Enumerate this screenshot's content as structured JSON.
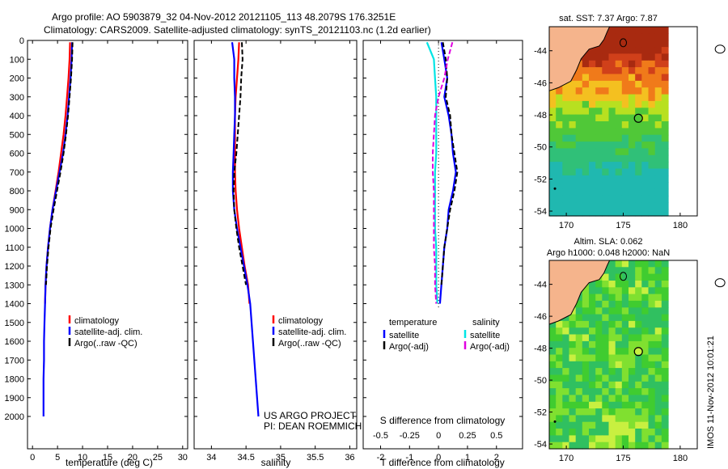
{
  "header": {
    "title_line1": "Argo profile: AO 5903879_32 04-Nov-2012 20121105_113 48.2079S 176.3251E",
    "title_line2": "Climatology: CARS2009. Satellite-adjusted climatology: synTS_20121103.nc (1.2d earlier)"
  },
  "stamp": "IMOS 11-Nov-2012 10:01:21",
  "colors": {
    "climatology": "#ff0000",
    "satellite": "#0000ff",
    "argo": "#000000",
    "sat_diff_s": "#00e5e5",
    "argo_diff_s": "#e000e0",
    "land": "#f5b48c"
  },
  "chart_data": [
    {
      "type": "line",
      "name": "temperature-profile",
      "xlabel": "temperature (deg C)",
      "xlim": [
        -1,
        31
      ],
      "ylim": [
        0,
        2050
      ],
      "yreverse": true,
      "xticks": [
        0,
        5,
        10,
        15,
        20,
        25,
        30
      ],
      "yticks": [
        0,
        100,
        200,
        300,
        400,
        500,
        600,
        700,
        800,
        900,
        1000,
        1100,
        1200,
        1300,
        1400,
        1500,
        1600,
        1700,
        1800,
        1900,
        2000
      ],
      "legend": [
        "climatology",
        "satellite-adj. clim.",
        "Argo(..raw -QC)"
      ],
      "series": [
        {
          "name": "climatology",
          "color": "#ff0000",
          "x": [
            7.5,
            7.4,
            7.2,
            6.9,
            6.6,
            6.2,
            5.7,
            5.2,
            4.6,
            4.0,
            3.5,
            3.1,
            2.8,
            2.6,
            2.5
          ],
          "y": [
            10,
            100,
            200,
            300,
            400,
            500,
            600,
            700,
            800,
            900,
            1000,
            1100,
            1200,
            1300,
            1400
          ]
        },
        {
          "name": "satellite-adj. clim.",
          "color": "#0000ff",
          "x": [
            7.9,
            7.8,
            7.6,
            7.3,
            7.0,
            6.6,
            6.1,
            5.4,
            4.7,
            4.0,
            3.5,
            3.1,
            2.8,
            2.6,
            2.5,
            2.4,
            2.3,
            2.3,
            2.2,
            2.2,
            2.2
          ],
          "y": [
            10,
            100,
            200,
            300,
            400,
            500,
            600,
            700,
            800,
            900,
            1000,
            1100,
            1200,
            1300,
            1400,
            1500,
            1600,
            1700,
            1800,
            1900,
            2000
          ]
        },
        {
          "name": "Argo(..raw -QC)",
          "color": "#000000",
          "dashed": true,
          "x": [
            8.0,
            7.9,
            7.7,
            7.4,
            7.1,
            6.7,
            6.2,
            5.6,
            4.9,
            4.2,
            3.6,
            3.2,
            2.9,
            2.7
          ],
          "y": [
            10,
            100,
            200,
            300,
            400,
            500,
            600,
            700,
            800,
            900,
            1000,
            1100,
            1200,
            1300
          ]
        }
      ]
    },
    {
      "type": "line",
      "name": "salinity-profile",
      "xlabel": "salinity",
      "xlim": [
        33.75,
        36.1
      ],
      "ylim": [
        0,
        2050
      ],
      "yreverse": true,
      "xticks": [
        34,
        34.5,
        35,
        35.5,
        36
      ],
      "legend": [
        "climatology",
        "satellite-adj. clim.",
        "Argo(..raw -QC)"
      ],
      "annotation": [
        "US ARGO PROJECT",
        "PI: DEAN ROEMMICH"
      ],
      "series": [
        {
          "name": "climatology",
          "color": "#ff0000",
          "x": [
            34.4,
            34.39,
            34.37,
            34.35,
            34.34,
            34.34,
            34.34,
            34.34,
            34.35,
            34.37,
            34.4,
            34.44,
            34.48,
            34.53,
            34.55
          ],
          "y": [
            10,
            100,
            200,
            300,
            400,
            500,
            600,
            700,
            800,
            900,
            1000,
            1100,
            1200,
            1300,
            1400
          ]
        },
        {
          "name": "satellite-adj. clim.",
          "color": "#0000ff",
          "x": [
            34.3,
            34.33,
            34.33,
            34.34,
            34.34,
            34.33,
            34.32,
            34.31,
            34.31,
            34.33,
            34.37,
            34.42,
            34.47,
            34.52,
            34.56,
            34.58,
            34.6,
            34.62,
            34.64,
            34.66,
            34.68
          ],
          "y": [
            10,
            100,
            200,
            300,
            400,
            500,
            600,
            700,
            800,
            900,
            1000,
            1100,
            1200,
            1300,
            1400,
            1500,
            1600,
            1700,
            1800,
            1900,
            2000
          ]
        },
        {
          "name": "Argo(..raw -QC)",
          "color": "#000000",
          "dashed": true,
          "x": [
            34.44,
            34.45,
            34.43,
            34.42,
            34.4,
            34.38,
            34.36,
            34.33,
            34.32,
            34.33,
            34.36,
            34.4,
            34.45,
            34.5
          ],
          "y": [
            10,
            100,
            200,
            300,
            400,
            500,
            600,
            700,
            800,
            900,
            1000,
            1100,
            1200,
            1300
          ]
        }
      ]
    },
    {
      "type": "line",
      "name": "difference-from-climatology",
      "xlabel": "T difference from climatology",
      "xlabel_top": "S difference from climatology",
      "xlim": [
        -2.6,
        2.9
      ],
      "ylim": [
        0,
        2050
      ],
      "yreverse": true,
      "xticks": [
        -2,
        -1,
        0,
        1,
        2
      ],
      "xticks_s": [
        -0.5,
        -0.25,
        0,
        0.25,
        0.5
      ],
      "legend_groups": [
        {
          "title": "temperature",
          "items": [
            "satellite",
            "Argo(-adj)"
          ]
        },
        {
          "title": "salinity",
          "items": [
            "satellite",
            "Argo(-adj)"
          ]
        }
      ],
      "series": [
        {
          "name": "temperature satellite",
          "color": "#0000ff",
          "x": [
            0.1,
            0.2,
            0.3,
            0.2,
            0.35,
            0.45,
            0.5,
            0.6,
            0.5,
            0.35,
            0.3,
            0.2,
            0.15,
            0.1,
            0.05
          ],
          "y": [
            10,
            100,
            200,
            300,
            400,
            500,
            600,
            700,
            800,
            900,
            1000,
            1100,
            1200,
            1300,
            1400
          ]
        },
        {
          "name": "temperature Argo(-adj)",
          "color": "#000000",
          "dashed": true,
          "x": [
            0.15,
            0.25,
            0.3,
            0.25,
            0.4,
            0.45,
            0.55,
            0.65,
            0.55,
            0.4,
            0.3,
            0.2,
            0.15,
            0.1
          ],
          "y": [
            10,
            100,
            200,
            300,
            400,
            500,
            600,
            700,
            800,
            900,
            1000,
            1100,
            1200,
            1300
          ]
        },
        {
          "name": "salinity satellite",
          "color": "#00e5e5",
          "x": [
            -0.1,
            -0.04,
            -0.03,
            -0.02,
            -0.02,
            -0.02,
            -0.02,
            -0.03,
            -0.03,
            -0.03,
            -0.03,
            -0.02,
            -0.02,
            -0.02,
            -0.01
          ],
          "y": [
            10,
            100,
            200,
            300,
            400,
            500,
            600,
            700,
            800,
            900,
            1000,
            1100,
            1200,
            1300,
            1400
          ]
        },
        {
          "name": "salinity Argo(-adj)",
          "color": "#e000e0",
          "dashed": true,
          "x": [
            0.12,
            0.08,
            0.05,
            0.0,
            -0.03,
            -0.04,
            -0.05,
            -0.05,
            -0.04,
            -0.04,
            -0.04,
            -0.04,
            -0.03,
            -0.03,
            -0.02
          ],
          "y": [
            10,
            100,
            200,
            300,
            400,
            500,
            600,
            700,
            800,
            900,
            1000,
            1100,
            1200,
            1300,
            1400
          ]
        }
      ]
    },
    {
      "type": "heatmap",
      "name": "sst-map",
      "title": "sat. SST: 7.37  Argo: 7.87",
      "xlim": [
        168.5,
        181.5
      ],
      "ylim": [
        -54.3,
        -42.5
      ],
      "xticks": [
        170,
        175,
        180
      ],
      "yticks": [
        -44,
        -46,
        -48,
        -50,
        -52,
        -54
      ]
    },
    {
      "type": "heatmap",
      "name": "sla-map",
      "title_line1": "Altim. SLA: 0.062",
      "title_line2": "Argo h1000: 0.048 h2000: NaN",
      "xlim": [
        168.5,
        181.5
      ],
      "ylim": [
        -54.3,
        -42.5
      ],
      "xticks": [
        170,
        175,
        180
      ],
      "yticks": [
        -44,
        -46,
        -48,
        -50,
        -52,
        -54
      ]
    }
  ]
}
